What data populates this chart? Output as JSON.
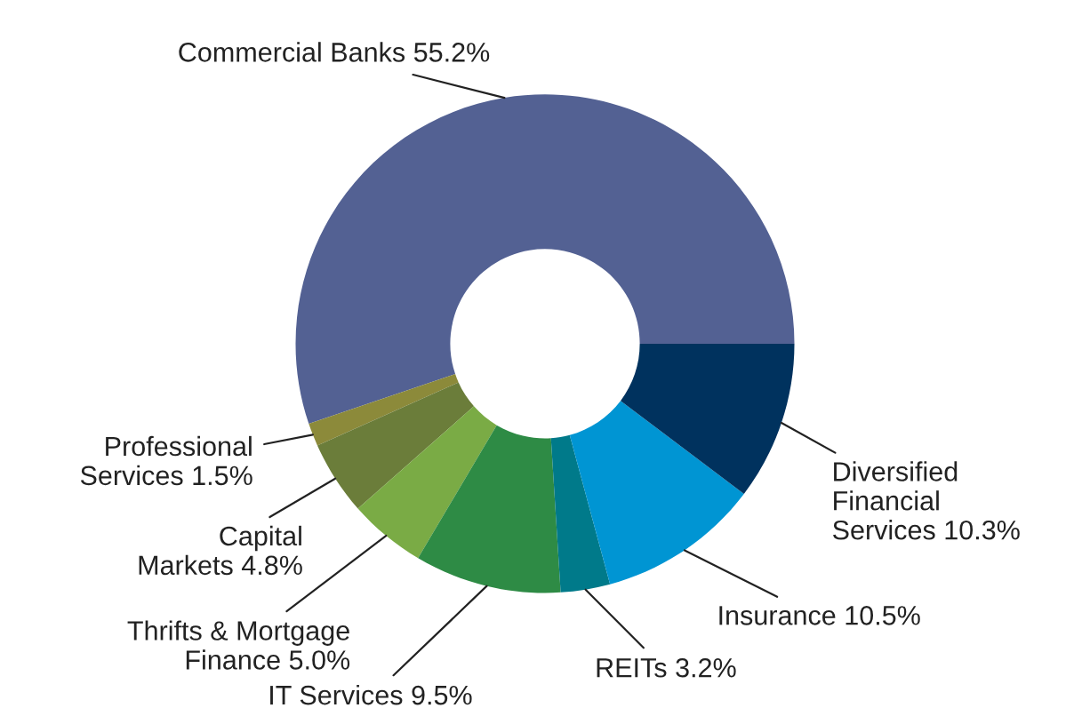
{
  "chart_data": {
    "type": "donut",
    "categories": [
      "Commercial Banks",
      "Professional\nServices",
      "Capital\n   Markets",
      "Thrifts & Mortgage\nFinance",
      "IT Services",
      "REITs",
      "Insurance",
      "Diversified\nFinancial\nServices"
    ],
    "values": [
      55.2,
      1.5,
      4.8,
      5.0,
      9.5,
      3.2,
      10.5,
      10.3
    ],
    "value_labels": [
      "55.2%",
      "1.5%",
      "4.8%",
      "5.0%",
      "9.5%",
      "3.2%",
      "10.5%",
      "10.3%"
    ],
    "colors": [
      "#536193",
      "#8c8a3a",
      "#6b7d3a",
      "#7aab45",
      "#2e8b45",
      "#007a8a",
      "#0095d3",
      "#00325e"
    ],
    "legend": false
  }
}
